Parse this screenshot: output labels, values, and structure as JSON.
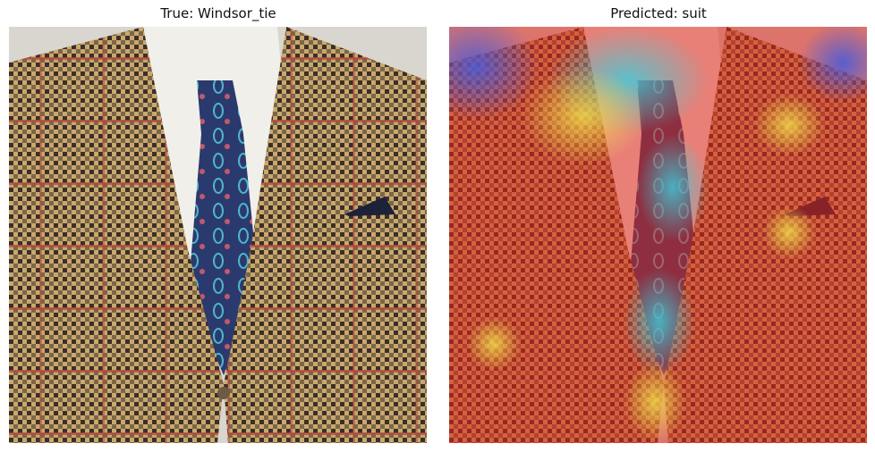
{
  "panels": [
    {
      "title": "True: Windsor_tie",
      "image": "photo of a man in a houndstooth tweed jacket with a paisley tie and pocket square"
    },
    {
      "title": "Predicted: suit",
      "image": "same photo overlaid with a jet-colormap heatmap (red over jacket, cyan/green over the tie)"
    }
  ]
}
